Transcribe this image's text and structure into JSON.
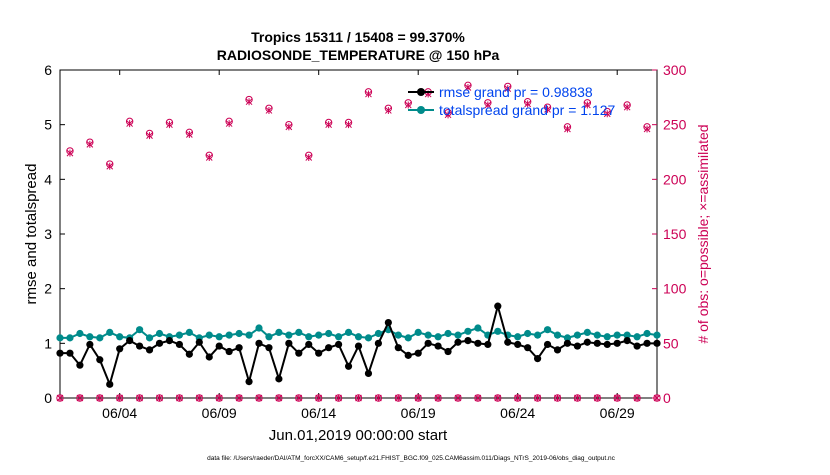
{
  "chart_data": {
    "type": "line",
    "title_line1": "Tropics 15311 / 15408 = 99.370%",
    "title_line2": "RADIOSONDE_TEMPERATURE @ 150 hPa",
    "xlabel": "Jun.01,2019 00:00:00 start",
    "ylabel_left": "rmse and totalspread",
    "ylabel_right": "# of obs: o=possible; ×=assimilated",
    "footnote": "data file: /Users/raeder/DAI/ATM_forcXX/CAM6_setup/f.e21.FHIST_BGC.f09_025.CAM6assim.011/Diags_NTrS_2019-06/obs_diag_output.nc",
    "xlim": [
      1,
      31
    ],
    "ylim_left": [
      0,
      6
    ],
    "ylim_right": [
      0,
      300
    ],
    "x_ticks": [
      4,
      9,
      14,
      19,
      24,
      29
    ],
    "x_tick_labels": [
      "06/04",
      "06/09",
      "06/14",
      "06/19",
      "06/24",
      "06/29"
    ],
    "y_left_ticks": [
      "0",
      "1",
      "2",
      "3",
      "4",
      "5",
      "6"
    ],
    "y_right_ticks": [
      "0",
      "50",
      "100",
      "150",
      "200",
      "250",
      "300"
    ],
    "legend": {
      "rmse": "rmse grand pr = 0.98838",
      "spread": "totalspread grand pr = 1.127"
    },
    "colors": {
      "rmse": "#000000",
      "spread": "#008b8b",
      "obs": "#cc0055",
      "legend_text": "#0044ee",
      "axis": "#000000"
    },
    "series": [
      {
        "name": "rmse",
        "x": [
          1.0,
          1.5,
          2.0,
          2.5,
          3.0,
          3.5,
          4.0,
          4.5,
          5.0,
          5.5,
          6.0,
          6.5,
          7.0,
          7.5,
          8.0,
          8.5,
          9.0,
          9.5,
          10.0,
          10.5,
          11.0,
          11.5,
          12.0,
          12.5,
          13.0,
          13.5,
          14.0,
          14.5,
          15.0,
          15.5,
          16.0,
          16.5,
          17.0,
          17.5,
          18.0,
          18.5,
          19.0,
          19.5,
          20.0,
          20.5,
          21.0,
          21.5,
          22.0,
          22.5,
          23.0,
          23.5,
          24.0,
          24.5,
          25.0,
          25.5,
          26.0,
          26.5,
          27.0,
          27.5,
          28.0,
          28.5,
          29.0,
          29.5,
          30.0,
          30.5,
          31.0
        ],
        "values": [
          0.82,
          0.82,
          0.6,
          0.98,
          0.7,
          0.25,
          0.9,
          1.05,
          0.95,
          0.88,
          1.0,
          1.05,
          0.98,
          0.8,
          1.02,
          0.75,
          0.95,
          0.85,
          0.92,
          0.3,
          1.0,
          0.92,
          0.35,
          1.0,
          0.82,
          0.98,
          0.82,
          0.92,
          0.98,
          0.58,
          0.95,
          0.45,
          1.0,
          1.38,
          0.92,
          0.78,
          0.82,
          1.0,
          0.95,
          0.85,
          1.02,
          1.05,
          1.0,
          0.98,
          1.68,
          1.02,
          0.98,
          0.92,
          0.72,
          0.98,
          0.88,
          1.0,
          0.95,
          1.02,
          1.0,
          0.98,
          1.0,
          1.05,
          0.95,
          1.0,
          1.0
        ]
      },
      {
        "name": "totalspread",
        "x": [
          1.0,
          1.5,
          2.0,
          2.5,
          3.0,
          3.5,
          4.0,
          4.5,
          5.0,
          5.5,
          6.0,
          6.5,
          7.0,
          7.5,
          8.0,
          8.5,
          9.0,
          9.5,
          10.0,
          10.5,
          11.0,
          11.5,
          12.0,
          12.5,
          13.0,
          13.5,
          14.0,
          14.5,
          15.0,
          15.5,
          16.0,
          16.5,
          17.0,
          17.5,
          18.0,
          18.5,
          19.0,
          19.5,
          20.0,
          20.5,
          21.0,
          21.5,
          22.0,
          22.5,
          23.0,
          23.5,
          24.0,
          24.5,
          25.0,
          25.5,
          26.0,
          26.5,
          27.0,
          27.5,
          28.0,
          28.5,
          29.0,
          29.5,
          30.0,
          30.5,
          31.0
        ],
        "values": [
          1.1,
          1.1,
          1.18,
          1.12,
          1.1,
          1.2,
          1.12,
          1.1,
          1.25,
          1.1,
          1.18,
          1.12,
          1.15,
          1.2,
          1.1,
          1.15,
          1.12,
          1.15,
          1.18,
          1.15,
          1.28,
          1.12,
          1.2,
          1.15,
          1.2,
          1.12,
          1.15,
          1.18,
          1.12,
          1.2,
          1.12,
          1.1,
          1.18,
          1.25,
          1.15,
          1.1,
          1.2,
          1.15,
          1.12,
          1.18,
          1.15,
          1.22,
          1.28,
          1.15,
          1.22,
          1.15,
          1.12,
          1.18,
          1.15,
          1.25,
          1.15,
          1.1,
          1.15,
          1.2,
          1.15,
          1.12,
          1.15,
          1.15,
          1.12,
          1.18,
          1.15
        ]
      },
      {
        "name": "obs_possible",
        "x": [
          1.0,
          1.5,
          2.0,
          2.5,
          3.0,
          3.5,
          4.0,
          4.5,
          5.0,
          5.5,
          6.0,
          6.5,
          7.0,
          7.5,
          8.0,
          8.5,
          9.0,
          9.5,
          10.0,
          10.5,
          11.0,
          11.5,
          12.0,
          12.5,
          13.0,
          13.5,
          14.0,
          14.5,
          15.0,
          15.5,
          16.0,
          16.5,
          17.0,
          17.5,
          18.0,
          18.5,
          19.0,
          19.5,
          20.0,
          20.5,
          21.0,
          21.5,
          22.0,
          22.5,
          23.0,
          23.5,
          24.0,
          24.5,
          25.0,
          25.5,
          26.0,
          26.5,
          27.0,
          27.5,
          28.0,
          28.5,
          29.0,
          29.5,
          30.0,
          30.5,
          31.0
        ],
        "values": [
          0,
          226,
          0,
          234,
          0,
          214,
          0,
          253,
          0,
          242,
          0,
          252,
          0,
          243,
          0,
          222,
          0,
          253,
          0,
          273,
          0,
          265,
          0,
          250,
          0,
          222,
          0,
          252,
          0,
          252,
          0,
          280,
          0,
          265,
          0,
          270,
          0,
          280,
          0,
          261,
          0,
          286,
          0,
          270,
          0,
          285,
          0,
          271,
          0,
          266,
          0,
          248,
          0,
          270,
          0,
          262,
          0,
          268,
          0,
          248,
          0
        ]
      },
      {
        "name": "obs_assimilated",
        "x": [
          1.0,
          1.5,
          2.0,
          2.5,
          3.0,
          3.5,
          4.0,
          4.5,
          5.0,
          5.5,
          6.0,
          6.5,
          7.0,
          7.5,
          8.0,
          8.5,
          9.0,
          9.5,
          10.0,
          10.5,
          11.0,
          11.5,
          12.0,
          12.5,
          13.0,
          13.5,
          14.0,
          14.5,
          15.0,
          15.5,
          16.0,
          16.5,
          17.0,
          17.5,
          18.0,
          18.5,
          19.0,
          19.5,
          20.0,
          20.5,
          21.0,
          21.5,
          22.0,
          22.5,
          23.0,
          23.5,
          24.0,
          24.5,
          25.0,
          25.5,
          26.0,
          26.5,
          27.0,
          27.5,
          28.0,
          28.5,
          29.0,
          29.5,
          30.0,
          30.5,
          31.0
        ],
        "values": [
          0,
          224,
          0,
          232,
          0,
          212,
          0,
          251,
          0,
          240,
          0,
          250,
          0,
          241,
          0,
          220,
          0,
          251,
          0,
          271,
          0,
          263,
          0,
          248,
          0,
          220,
          0,
          250,
          0,
          250,
          0,
          278,
          0,
          263,
          0,
          268,
          0,
          278,
          0,
          259,
          0,
          284,
          0,
          268,
          0,
          283,
          0,
          269,
          0,
          264,
          0,
          246,
          0,
          268,
          0,
          260,
          0,
          266,
          0,
          246,
          0
        ]
      }
    ]
  }
}
